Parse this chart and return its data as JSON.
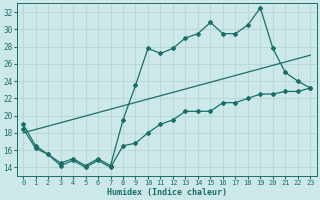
{
  "xlabel": "Humidex (Indice chaleur)",
  "xlim": [
    -0.5,
    23.5
  ],
  "ylim": [
    13,
    33
  ],
  "yticks": [
    14,
    16,
    18,
    20,
    22,
    24,
    26,
    28,
    30,
    32
  ],
  "xticks": [
    0,
    1,
    2,
    3,
    4,
    5,
    6,
    7,
    8,
    9,
    10,
    11,
    12,
    13,
    14,
    15,
    16,
    17,
    18,
    19,
    20,
    21,
    22,
    23
  ],
  "bg_color": "#cce8e8",
  "line_color": "#1a6e6a",
  "grid_color": "#b8d8d8",
  "line1_x": [
    0,
    1,
    2,
    3,
    4,
    5,
    6,
    7,
    8,
    9,
    10,
    11,
    12,
    13,
    14,
    15,
    16,
    17,
    18,
    19,
    20,
    21,
    22,
    23
  ],
  "line1_y": [
    19.0,
    16.5,
    15.5,
    14.5,
    15.0,
    14.2,
    15.0,
    14.2,
    19.5,
    23.5,
    27.8,
    27.2,
    27.8,
    29.0,
    29.5,
    30.8,
    29.5,
    29.5,
    30.5,
    32.5,
    27.8,
    25.0,
    24.0,
    23.2
  ],
  "line2_x": [
    0,
    1,
    2,
    3,
    4,
    5,
    6,
    7,
    8,
    9,
    10,
    11,
    12,
    13,
    14,
    15,
    16,
    17,
    18,
    19,
    20,
    21,
    22,
    23
  ],
  "line2_y": [
    18.5,
    16.2,
    15.5,
    14.2,
    14.8,
    14.0,
    14.8,
    14.0,
    16.5,
    16.8,
    18.0,
    19.0,
    19.5,
    20.5,
    20.5,
    20.5,
    21.5,
    21.5,
    22.0,
    22.5,
    22.5,
    22.8,
    22.8,
    23.2
  ],
  "line3_x": [
    0,
    23
  ],
  "line3_y": [
    18.0,
    27.0
  ]
}
